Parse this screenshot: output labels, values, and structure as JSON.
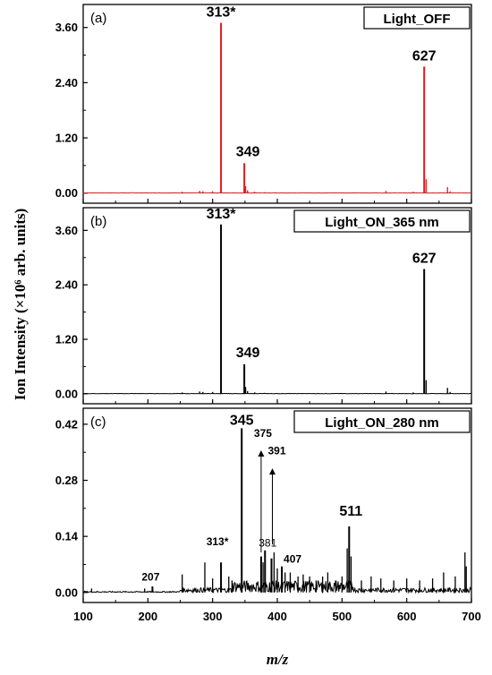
{
  "figure": {
    "ylabel": "Ion Intensity (×10⁶ arb. units)",
    "xlabel": "m/z"
  },
  "chart_data": [
    {
      "type": "line",
      "panel_label": "(a)",
      "legend": "Light_OFF",
      "color": "#e31a1c",
      "xlim": [
        100,
        700
      ],
      "ylim": [
        -0.22,
        4.1
      ],
      "yticks": [
        "0.00",
        "1.20",
        "2.40",
        "3.60"
      ],
      "ytick_values": [
        0.0,
        1.2,
        2.4,
        3.6
      ],
      "peaks": [
        {
          "x": 313,
          "y": 3.7,
          "label": "313*"
        },
        {
          "x": 349,
          "y": 0.65,
          "label": "349"
        },
        {
          "x": 627,
          "y": 2.75,
          "label": "627"
        }
      ],
      "minor_peaks": [
        [
          253,
          0.03
        ],
        [
          280,
          0.05
        ],
        [
          285,
          0.04
        ],
        [
          300,
          0.04
        ],
        [
          351,
          0.15
        ],
        [
          354,
          0.06
        ],
        [
          365,
          0.03
        ],
        [
          380,
          0.02
        ],
        [
          568,
          0.05
        ],
        [
          610,
          0.03
        ],
        [
          630,
          0.3
        ],
        [
          663,
          0.13
        ],
        [
          667,
          0.04
        ]
      ]
    },
    {
      "type": "line",
      "panel_label": "(b)",
      "legend": "Light_ON_365 nm",
      "color": "#000000",
      "xlim": [
        100,
        700
      ],
      "ylim": [
        -0.22,
        4.1
      ],
      "yticks": [
        "0.00",
        "1.20",
        "2.40",
        "3.60"
      ],
      "ytick_values": [
        0.0,
        1.2,
        2.4,
        3.6
      ],
      "peaks": [
        {
          "x": 313,
          "y": 3.73,
          "label": "313*"
        },
        {
          "x": 349,
          "y": 0.65,
          "label": "349"
        },
        {
          "x": 627,
          "y": 2.75,
          "label": "627"
        }
      ],
      "minor_peaks": [
        [
          253,
          0.03
        ],
        [
          280,
          0.05
        ],
        [
          285,
          0.04
        ],
        [
          300,
          0.04
        ],
        [
          351,
          0.15
        ],
        [
          354,
          0.06
        ],
        [
          365,
          0.03
        ],
        [
          380,
          0.02
        ],
        [
          568,
          0.05
        ],
        [
          610,
          0.03
        ],
        [
          630,
          0.3
        ],
        [
          663,
          0.13
        ],
        [
          667,
          0.04
        ]
      ]
    },
    {
      "type": "line",
      "panel_label": "(c)",
      "legend": "Light_ON_280 nm",
      "color": "#000000",
      "xlim": [
        100,
        700
      ],
      "ylim": [
        -0.025,
        0.46
      ],
      "yticks": [
        "0.00",
        "0.14",
        "0.28",
        "0.42"
      ],
      "ytick_values": [
        0.0,
        0.14,
        0.28,
        0.42
      ],
      "peaks": [
        {
          "x": 345,
          "y": 0.41,
          "label": "345"
        },
        {
          "x": 511,
          "y": 0.165,
          "label": "511"
        },
        {
          "x": 313,
          "y": 0.075,
          "label": "313*"
        },
        {
          "x": 207,
          "y": 0.015,
          "label": "207"
        },
        {
          "x": 381,
          "y": 0.105,
          "label": "381"
        },
        {
          "x": 407,
          "y": 0.065,
          "label": "407"
        },
        {
          "x": 375,
          "y": 0.09,
          "label": "375"
        },
        {
          "x": 391,
          "y": 0.085,
          "label": "391"
        }
      ],
      "minor_peaks": [
        [
          113,
          0.01
        ],
        [
          195,
          0.01
        ],
        [
          253,
          0.045
        ],
        [
          288,
          0.075
        ],
        [
          300,
          0.035
        ],
        [
          325,
          0.04
        ],
        [
          330,
          0.03
        ],
        [
          378,
          0.075
        ],
        [
          395,
          0.1
        ],
        [
          400,
          0.06
        ],
        [
          412,
          0.05
        ],
        [
          420,
          0.05
        ],
        [
          432,
          0.04
        ],
        [
          440,
          0.045
        ],
        [
          450,
          0.04
        ],
        [
          460,
          0.03
        ],
        [
          470,
          0.04
        ],
        [
          478,
          0.05
        ],
        [
          490,
          0.03
        ],
        [
          500,
          0.04
        ],
        [
          508,
          0.11
        ],
        [
          514,
          0.09
        ],
        [
          530,
          0.03
        ],
        [
          545,
          0.04
        ],
        [
          560,
          0.035
        ],
        [
          580,
          0.03
        ],
        [
          600,
          0.035
        ],
        [
          620,
          0.03
        ],
        [
          640,
          0.035
        ],
        [
          657,
          0.05
        ],
        [
          675,
          0.04
        ],
        [
          690,
          0.1
        ],
        [
          692,
          0.065
        ]
      ]
    }
  ],
  "xticks": [
    "100",
    "200",
    "300",
    "400",
    "500",
    "600",
    "700"
  ],
  "xtick_values": [
    100,
    200,
    300,
    400,
    500,
    600,
    700
  ]
}
